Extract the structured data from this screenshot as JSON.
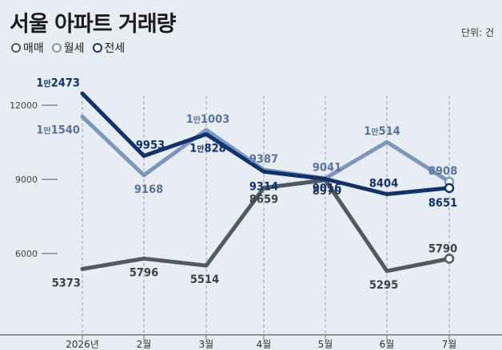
{
  "header": {
    "title": "서울 아파트 거래량",
    "unit": "단위: 건"
  },
  "legend": [
    {
      "name": "매매",
      "color": "#4f5a64"
    },
    {
      "name": "월세",
      "color": "#7d96be"
    },
    {
      "name": "전세",
      "color": "#10336d"
    }
  ],
  "chart_data": {
    "type": "line",
    "title": "서울 아파트 거래량",
    "categories": [
      "2026년",
      "2월",
      "3월",
      "4월",
      "5월",
      "6월",
      "7월"
    ],
    "ylim": [
      4200,
      13200
    ],
    "y_ticks": [
      6000,
      9000,
      12000
    ],
    "y_tick_labels": [
      "6000",
      "9000",
      "12000"
    ],
    "grid": "vertical dashed",
    "legend_position": "top-left",
    "series": [
      {
        "name": "매매",
        "color": "#4f5a64",
        "values": [
          5373,
          5796,
          5514,
          8659,
          8970,
          5295,
          5790
        ],
        "labels": [
          {
            "main": "5373"
          },
          {
            "main": "5796"
          },
          {
            "main": "5514"
          },
          {
            "main": "8659"
          },
          {
            "main": "8970"
          },
          {
            "main": "5295"
          },
          {
            "main": "5790"
          }
        ]
      },
      {
        "name": "월세",
        "color": "#7d96be",
        "values": [
          11540,
          9168,
          11003,
          9387,
          9041,
          10514,
          8908
        ],
        "labels": [
          {
            "pre": "1",
            "small": "만",
            "main": "1540"
          },
          {
            "main": "9168"
          },
          {
            "pre": "1",
            "small": "만",
            "main": "1003"
          },
          {
            "main": "9387"
          },
          {
            "main": "9041"
          },
          {
            "pre": "1",
            "small": "만",
            "main": "514"
          },
          {
            "main": "8908"
          }
        ]
      },
      {
        "name": "전세",
        "color": "#10336d",
        "values": [
          12473,
          9953,
          10828,
          9314,
          9016,
          8404,
          8651
        ],
        "labels": [
          {
            "pre": "1",
            "small": "만",
            "main": "2473"
          },
          {
            "main": "9953"
          },
          {
            "pre": "1",
            "small": "만",
            "main": "828"
          },
          {
            "main": "9314"
          },
          {
            "main": "9016"
          },
          {
            "main": "8404"
          },
          {
            "main": "8651"
          }
        ]
      }
    ]
  }
}
